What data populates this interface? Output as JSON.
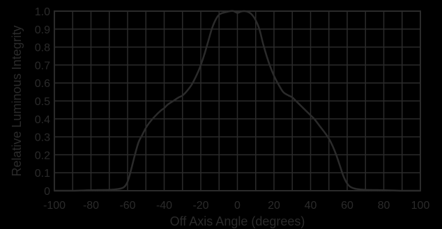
{
  "chart_data": {
    "type": "line",
    "title": "",
    "xlabel": "Off Axis Angle (degrees)",
    "ylabel": "Relative Luminous Integrity",
    "xlim": [
      -100,
      100
    ],
    "ylim": [
      0,
      1.0
    ],
    "x_ticks": [
      -100,
      -80,
      -60,
      -40,
      -20,
      0,
      20,
      40,
      60,
      80,
      100
    ],
    "x_tick_labels": [
      "-100",
      "-80",
      "-60",
      "-40",
      "-20",
      "0",
      "20",
      "40",
      "60",
      "80",
      "100"
    ],
    "y_ticks": [
      0,
      0.1,
      0.2,
      0.3,
      0.4,
      0.5,
      0.6,
      0.7,
      0.8,
      0.9,
      1.0
    ],
    "y_tick_labels": [
      "0",
      "0.1",
      "0.2",
      "0.3",
      "0.4",
      "0.5",
      "0.6",
      "0.7",
      "0.8",
      "0.9",
      "1.0"
    ],
    "grid": true,
    "x_minor_step": 10,
    "background_color": "#000000",
    "line_color": "#2b2b2b",
    "grid_color": "#2b2b2b",
    "text_color": "#2b2b2b",
    "series": [
      {
        "x": [
          -100,
          -90,
          -80,
          -70,
          -65,
          -62,
          -60,
          -58,
          -56,
          -54,
          -52,
          -50,
          -48,
          -45,
          -42,
          -40,
          -38,
          -35,
          -32,
          -30,
          -28,
          -25,
          -22,
          -20,
          -18,
          -16,
          -14,
          -12,
          -10,
          -8,
          -6,
          -4,
          -2,
          0,
          2,
          4,
          6,
          8,
          10,
          12,
          14,
          16,
          18,
          20,
          22,
          25,
          28,
          30,
          32,
          35,
          38,
          40,
          42,
          45,
          48,
          50,
          52,
          54,
          56,
          58,
          60,
          62,
          65,
          70,
          80,
          90,
          100
        ],
        "y": [
          0,
          0,
          0.003,
          0.005,
          0.01,
          0.02,
          0.05,
          0.12,
          0.2,
          0.27,
          0.31,
          0.35,
          0.38,
          0.415,
          0.445,
          0.46,
          0.48,
          0.5,
          0.52,
          0.53,
          0.55,
          0.59,
          0.65,
          0.7,
          0.76,
          0.83,
          0.9,
          0.95,
          0.98,
          0.99,
          0.995,
          1.0,
          1.0,
          0.99,
          0.998,
          1.0,
          0.995,
          0.98,
          0.95,
          0.9,
          0.82,
          0.75,
          0.69,
          0.64,
          0.6,
          0.55,
          0.53,
          0.52,
          0.5,
          0.47,
          0.44,
          0.42,
          0.4,
          0.36,
          0.32,
          0.29,
          0.25,
          0.2,
          0.14,
          0.08,
          0.04,
          0.02,
          0.01,
          0.005,
          0.003,
          0,
          0
        ]
      }
    ]
  }
}
